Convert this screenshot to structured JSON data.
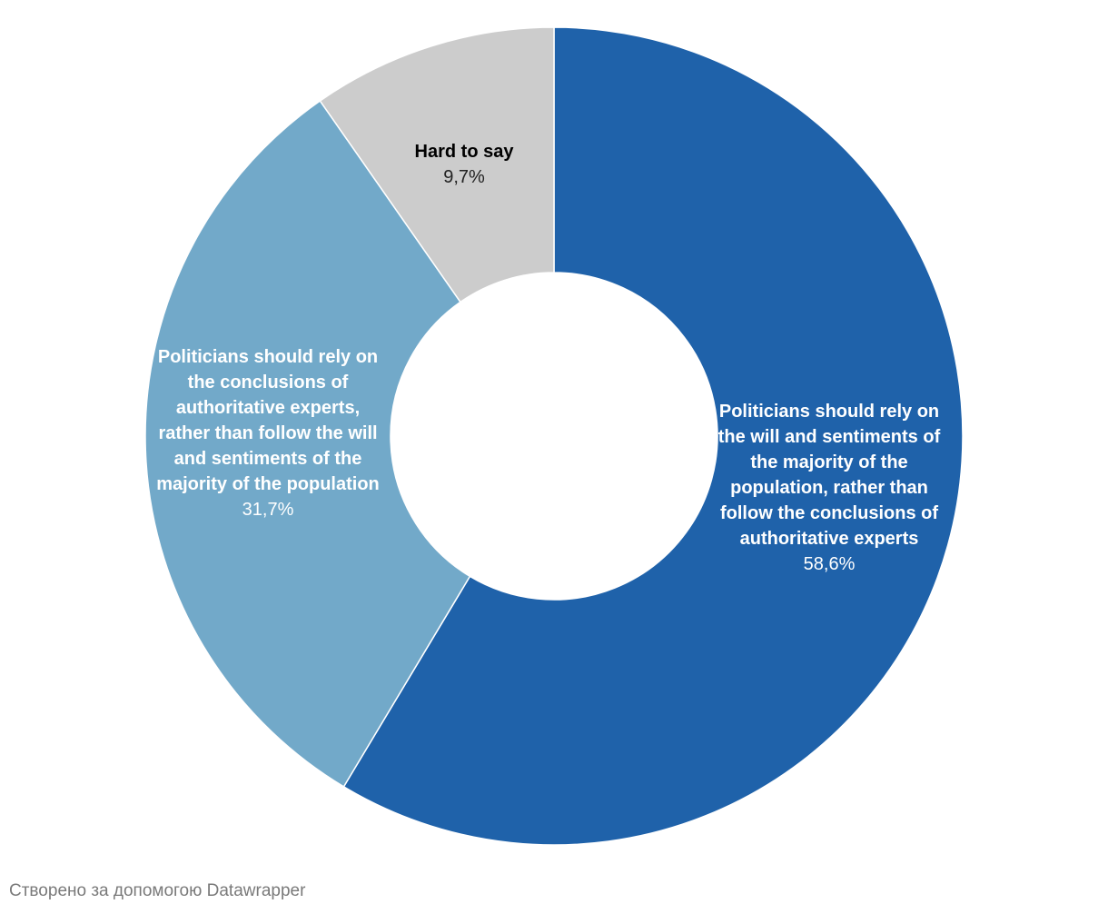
{
  "chart_data": {
    "type": "pie",
    "variant": "donut",
    "slices": [
      {
        "label": "Politicians should rely on the will and sentiments of the majority of the population, rather than follow the conclusions of authoritative experts",
        "value": 58.6,
        "display_value": "58,6%",
        "color": "#1f62aa",
        "text_color": "#ffffff",
        "value_color": "#ffffff"
      },
      {
        "label": "Politicians should rely on the conclusions of authoritative experts, rather than follow the will and sentiments of the majority of the population",
        "value": 31.7,
        "display_value": "31,7%",
        "color": "#72a9c9",
        "text_color": "#ffffff",
        "value_color": "#ffffff"
      },
      {
        "label": "Hard to say",
        "value": 9.7,
        "display_value": "9,7%",
        "color": "#cccccc",
        "text_color": "#000000",
        "value_color": "#222222"
      }
    ]
  },
  "footer": {
    "credit": "Створено за допомогою Datawrapper"
  }
}
